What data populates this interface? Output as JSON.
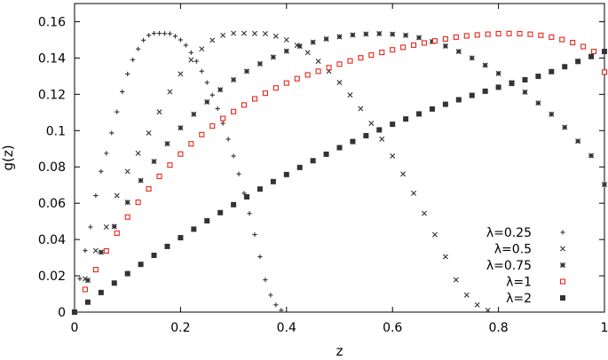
{
  "chart_data": {
    "type": "scatter",
    "title": "",
    "xlabel": "z",
    "ylabel": "g(z)",
    "xlim": [
      0,
      1
    ],
    "ylim": [
      0,
      0.17
    ],
    "x_ticks": [
      0,
      0.2,
      0.4,
      0.6,
      0.8,
      1
    ],
    "x_tick_labels": [
      "0",
      "0.2",
      "0.4",
      "0.6",
      "0.8",
      "1"
    ],
    "y_ticks": [
      0,
      0.02,
      0.04,
      0.06,
      0.08,
      0.1,
      0.12,
      0.14,
      0.16
    ],
    "y_tick_labels": [
      "0",
      "0.02",
      "0.04",
      "0.06",
      "0.08",
      "0.1",
      "0.12",
      "0.14",
      "0.16"
    ],
    "grid": false,
    "legend_position": "bottom-right",
    "series": [
      {
        "name": "λ=0.25",
        "lambda": 0.25,
        "marker": "plus",
        "color": "#333333",
        "x": [
          0,
          0.01,
          0.02,
          0.03,
          0.04,
          0.05,
          0.06,
          0.07,
          0.08,
          0.09,
          0.1,
          0.11,
          0.12,
          0.13,
          0.14,
          0.15,
          0.16,
          0.17,
          0.18,
          0.19,
          0.2,
          0.21,
          0.22,
          0.23,
          0.24,
          0.25,
          0.26,
          0.27,
          0.28,
          0.29,
          0.3,
          0.31,
          0.32,
          0.33,
          0.34,
          0.35,
          0.36,
          0.37,
          0.38,
          0.39
        ],
        "y": [
          0,
          0.0184,
          0.0339,
          0.0469,
          0.0642,
          0.0775,
          0.0875,
          0.0987,
          0.1103,
          0.1214,
          0.1312,
          0.139,
          0.145,
          0.1498,
          0.1525,
          0.1536,
          0.1536,
          0.1535,
          0.1534,
          0.152,
          0.15,
          0.147,
          0.143,
          0.1382,
          0.1327,
          0.1265,
          0.1196,
          0.1121,
          0.104,
          0.0953,
          0.086,
          0.0761,
          0.0655,
          0.0544,
          0.0427,
          0.0305,
          0.0178,
          0.0094,
          0.004,
          0.001
        ]
      },
      {
        "name": "λ=0.5",
        "lambda": 0.5,
        "marker": "cross",
        "color": "#333333",
        "x": [
          0,
          0.02,
          0.04,
          0.06,
          0.08,
          0.1,
          0.12,
          0.14,
          0.16,
          0.18,
          0.2,
          0.22,
          0.24,
          0.26,
          0.28,
          0.3,
          0.32,
          0.34,
          0.36,
          0.38,
          0.4,
          0.42,
          0.44,
          0.46,
          0.48,
          0.5,
          0.52,
          0.54,
          0.56,
          0.58,
          0.6,
          0.62,
          0.64,
          0.66,
          0.68,
          0.7,
          0.72,
          0.74,
          0.76,
          0.78
        ],
        "y": [
          0,
          0.0184,
          0.0339,
          0.0469,
          0.0642,
          0.0775,
          0.0875,
          0.0987,
          0.1103,
          0.1214,
          0.1312,
          0.139,
          0.145,
          0.1498,
          0.1525,
          0.1536,
          0.1536,
          0.1535,
          0.1534,
          0.152,
          0.15,
          0.147,
          0.143,
          0.1382,
          0.1327,
          0.1265,
          0.1196,
          0.1121,
          0.104,
          0.0953,
          0.086,
          0.0761,
          0.0655,
          0.0544,
          0.0427,
          0.0305,
          0.0178,
          0.0094,
          0.004,
          0.001
        ]
      },
      {
        "name": "λ=0.75",
        "lambda": 0.75,
        "marker": "star",
        "color": "#333333",
        "x": [
          0,
          0.025,
          0.05,
          0.075,
          0.1,
          0.125,
          0.15,
          0.175,
          0.2,
          0.225,
          0.25,
          0.275,
          0.3,
          0.325,
          0.35,
          0.375,
          0.4,
          0.425,
          0.45,
          0.475,
          0.5,
          0.525,
          0.55,
          0.575,
          0.6,
          0.625,
          0.65,
          0.675,
          0.7,
          0.725,
          0.75,
          0.775,
          0.8,
          0.825,
          0.85,
          0.875,
          0.9,
          0.925,
          0.95,
          0.975,
          1
        ],
        "y": [
          0,
          0.0175,
          0.033,
          0.0472,
          0.0605,
          0.0725,
          0.083,
          0.0928,
          0.1015,
          0.109,
          0.1158,
          0.1225,
          0.128,
          0.1327,
          0.1368,
          0.1405,
          0.1438,
          0.1465,
          0.1487,
          0.1505,
          0.1517,
          0.1527,
          0.1532,
          0.1534,
          0.1531,
          0.1525,
          0.1512,
          0.149,
          0.1466,
          0.1436,
          0.14,
          0.136,
          0.1315,
          0.1265,
          0.1212,
          0.1152,
          0.109,
          0.1018,
          0.0942,
          0.0862,
          0.0703
        ]
      },
      {
        "name": "λ=1",
        "lambda": 1,
        "marker": "open-square",
        "color": "#e8251a",
        "x": [
          0,
          0.02,
          0.04,
          0.06,
          0.08,
          0.1,
          0.12,
          0.14,
          0.16,
          0.18,
          0.2,
          0.22,
          0.24,
          0.26,
          0.28,
          0.3,
          0.32,
          0.34,
          0.36,
          0.38,
          0.4,
          0.42,
          0.44,
          0.46,
          0.48,
          0.5,
          0.52,
          0.54,
          0.56,
          0.58,
          0.6,
          0.62,
          0.64,
          0.66,
          0.68,
          0.7,
          0.72,
          0.74,
          0.76,
          0.78,
          0.8,
          0.82,
          0.84,
          0.86,
          0.88,
          0.9,
          0.92,
          0.94,
          0.96,
          0.98,
          1
        ],
        "y": [
          0,
          0.0125,
          0.0234,
          0.0337,
          0.0435,
          0.0524,
          0.0605,
          0.0679,
          0.0748,
          0.081,
          0.0871,
          0.0927,
          0.0978,
          0.1025,
          0.1067,
          0.1105,
          0.1141,
          0.1175,
          0.1206,
          0.1235,
          0.1262,
          0.1286,
          0.1307,
          0.1327,
          0.1347,
          0.1366,
          0.1384,
          0.1401,
          0.1416,
          0.1431,
          0.1445,
          0.1459,
          0.1471,
          0.1483,
          0.1494,
          0.1505,
          0.1515,
          0.1522,
          0.1527,
          0.1531,
          0.1534,
          0.1535,
          0.1534,
          0.1531,
          0.1525,
          0.1515,
          0.1502,
          0.1485,
          0.1463,
          0.1436,
          0.1322
        ]
      },
      {
        "name": "λ=2",
        "lambda": 2,
        "marker": "filled-square",
        "color": "#333333",
        "x": [
          0,
          0.025,
          0.05,
          0.075,
          0.1,
          0.125,
          0.15,
          0.175,
          0.2,
          0.225,
          0.25,
          0.275,
          0.3,
          0.325,
          0.35,
          0.375,
          0.4,
          0.425,
          0.45,
          0.475,
          0.5,
          0.525,
          0.55,
          0.575,
          0.6,
          0.625,
          0.65,
          0.675,
          0.7,
          0.725,
          0.75,
          0.775,
          0.8,
          0.825,
          0.85,
          0.875,
          0.9,
          0.925,
          0.95,
          0.975,
          1
        ],
        "y": [
          0,
          0.0055,
          0.0108,
          0.016,
          0.0212,
          0.0263,
          0.0313,
          0.0362,
          0.041,
          0.0457,
          0.0503,
          0.0548,
          0.0592,
          0.0635,
          0.0678,
          0.0719,
          0.0758,
          0.0797,
          0.0834,
          0.087,
          0.0906,
          0.094,
          0.0972,
          0.1004,
          0.1035,
          0.1064,
          0.1092,
          0.1119,
          0.1145,
          0.117,
          0.1194,
          0.1217,
          0.1239,
          0.126,
          0.128,
          0.1299,
          0.1325,
          0.1352,
          0.1381,
          0.1408,
          0.1436
        ]
      }
    ]
  }
}
